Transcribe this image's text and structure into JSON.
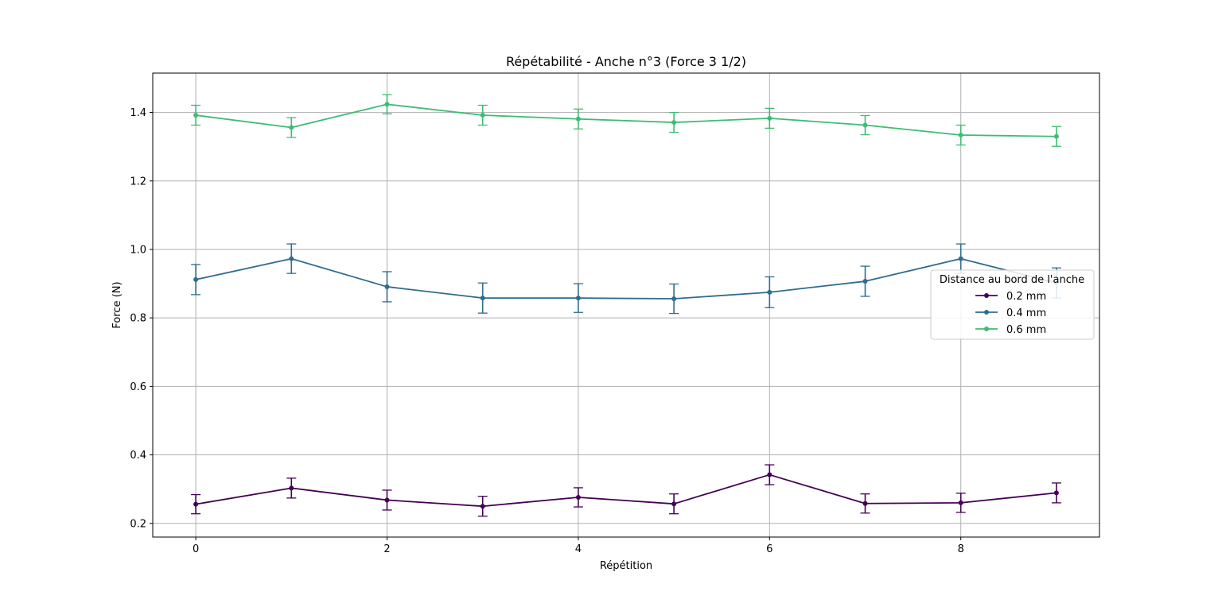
{
  "chart_data": {
    "type": "line",
    "title": "Répétabilité - Anche n°3 (Force 3 1/2)",
    "xlabel": "Répétition",
    "ylabel": "Force (N)",
    "xlim": [
      -0.45,
      9.45
    ],
    "ylim": [
      0.16,
      1.515
    ],
    "xticks": [
      0,
      2,
      4,
      6,
      8
    ],
    "yticks": [
      0.2,
      0.4,
      0.6,
      0.8,
      1.0,
      1.2,
      1.4
    ],
    "xtick_labels": [
      "0",
      "2",
      "4",
      "6",
      "8"
    ],
    "ytick_labels": [
      "0.2",
      "0.4",
      "0.6",
      "0.8",
      "1.0",
      "1.2",
      "1.4"
    ],
    "grid": true,
    "legend": {
      "title": "Distance au bord de l'anche",
      "position": "center-right"
    },
    "x": [
      0,
      1,
      2,
      3,
      4,
      5,
      6,
      7,
      8,
      9
    ],
    "series": [
      {
        "name": "0.2 mm",
        "color": "#440154",
        "values": [
          0.256,
          0.303,
          0.268,
          0.25,
          0.276,
          0.257,
          0.342,
          0.258,
          0.26,
          0.289
        ],
        "errors": [
          0.028,
          0.029,
          0.029,
          0.029,
          0.028,
          0.029,
          0.029,
          0.028,
          0.028,
          0.029
        ]
      },
      {
        "name": "0.4 mm",
        "color": "#2f6c8e",
        "values": [
          0.912,
          0.973,
          0.891,
          0.858,
          0.858,
          0.856,
          0.875,
          0.907,
          0.973,
          0.902
        ],
        "errors": [
          0.044,
          0.043,
          0.044,
          0.044,
          0.042,
          0.043,
          0.045,
          0.044,
          0.043,
          0.044
        ]
      },
      {
        "name": "0.6 mm",
        "color": "#3dbc74",
        "values": [
          1.392,
          1.356,
          1.424,
          1.392,
          1.381,
          1.371,
          1.383,
          1.363,
          1.334,
          1.33
        ],
        "errors": [
          0.029,
          0.029,
          0.028,
          0.029,
          0.029,
          0.029,
          0.029,
          0.028,
          0.029,
          0.029
        ]
      }
    ]
  }
}
